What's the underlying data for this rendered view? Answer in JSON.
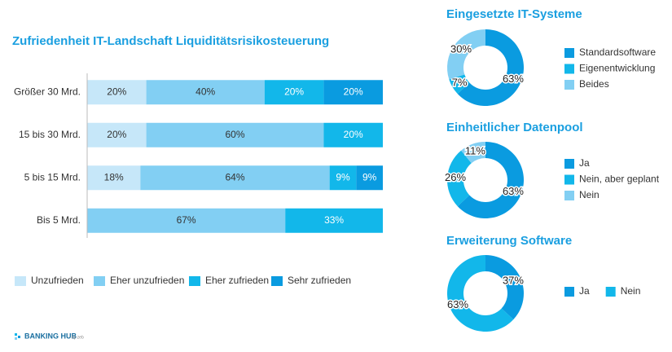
{
  "chart_data": [
    {
      "type": "bar",
      "orientation": "horizontal",
      "stacked": true,
      "title": "Zufriedenheit IT-Landschaft Liquiditätsrisikosteuerung",
      "categories": [
        "Größer 30 Mrd.",
        "15 bis 30 Mrd.",
        "5 bis 15 Mrd.",
        "Bis 5 Mrd."
      ],
      "xlim": [
        0,
        100
      ],
      "legend": "bottom",
      "series": [
        {
          "name": "Unzufrieden",
          "color": "#c6e7f9",
          "values": [
            20,
            20,
            18,
            null
          ],
          "value_labels": [
            "20%",
            "20%",
            "18%",
            null
          ]
        },
        {
          "name": "Eher unzufrieden",
          "color": "#82cff3",
          "values": [
            40,
            60,
            64,
            67
          ],
          "value_labels": [
            "40%",
            "60%",
            "64%",
            "67%"
          ]
        },
        {
          "name": "Eher zufrieden",
          "color": "#12b7ea",
          "values": [
            20,
            20,
            9,
            33
          ],
          "value_labels": [
            "20%",
            "20%",
            "9%",
            "33%"
          ]
        },
        {
          "name": "Sehr zufrieden",
          "color": "#0a9be0",
          "values": [
            20,
            null,
            9,
            null
          ],
          "value_labels": [
            "20%",
            null,
            "9%",
            null
          ]
        }
      ]
    },
    {
      "type": "pie",
      "donut": true,
      "title": "Eingesetzte IT-Systeme",
      "legend": "right",
      "legend_direction": "vertical",
      "categories": [
        "Standardsoftware",
        "Eigenentwicklung",
        "Beides"
      ],
      "values": [
        63,
        7,
        30
      ],
      "value_labels": [
        "63%",
        "7%",
        "30%"
      ],
      "colors": [
        "#0a9be0",
        "#12b7ea",
        "#82cff3"
      ]
    },
    {
      "type": "pie",
      "donut": true,
      "title": "Einheitlicher Datenpool",
      "legend": "right",
      "legend_direction": "vertical",
      "categories": [
        "Ja",
        "Nein, aber geplant",
        "Nein"
      ],
      "values": [
        63,
        26,
        11
      ],
      "value_labels": [
        "63%",
        "26%",
        "11%"
      ],
      "colors": [
        "#0a9be0",
        "#12b7ea",
        "#82cff3"
      ]
    },
    {
      "type": "pie",
      "donut": true,
      "title": "Erweiterung Software",
      "legend": "right",
      "legend_direction": "horizontal",
      "categories": [
        "Ja",
        "Nein"
      ],
      "values": [
        37,
        63
      ],
      "value_labels": [
        "37%",
        "63%"
      ],
      "colors": [
        "#0a9be0",
        "#12b7ea"
      ]
    }
  ],
  "footer": {
    "brand": "BANKING HUB",
    "by": "by zeb"
  }
}
